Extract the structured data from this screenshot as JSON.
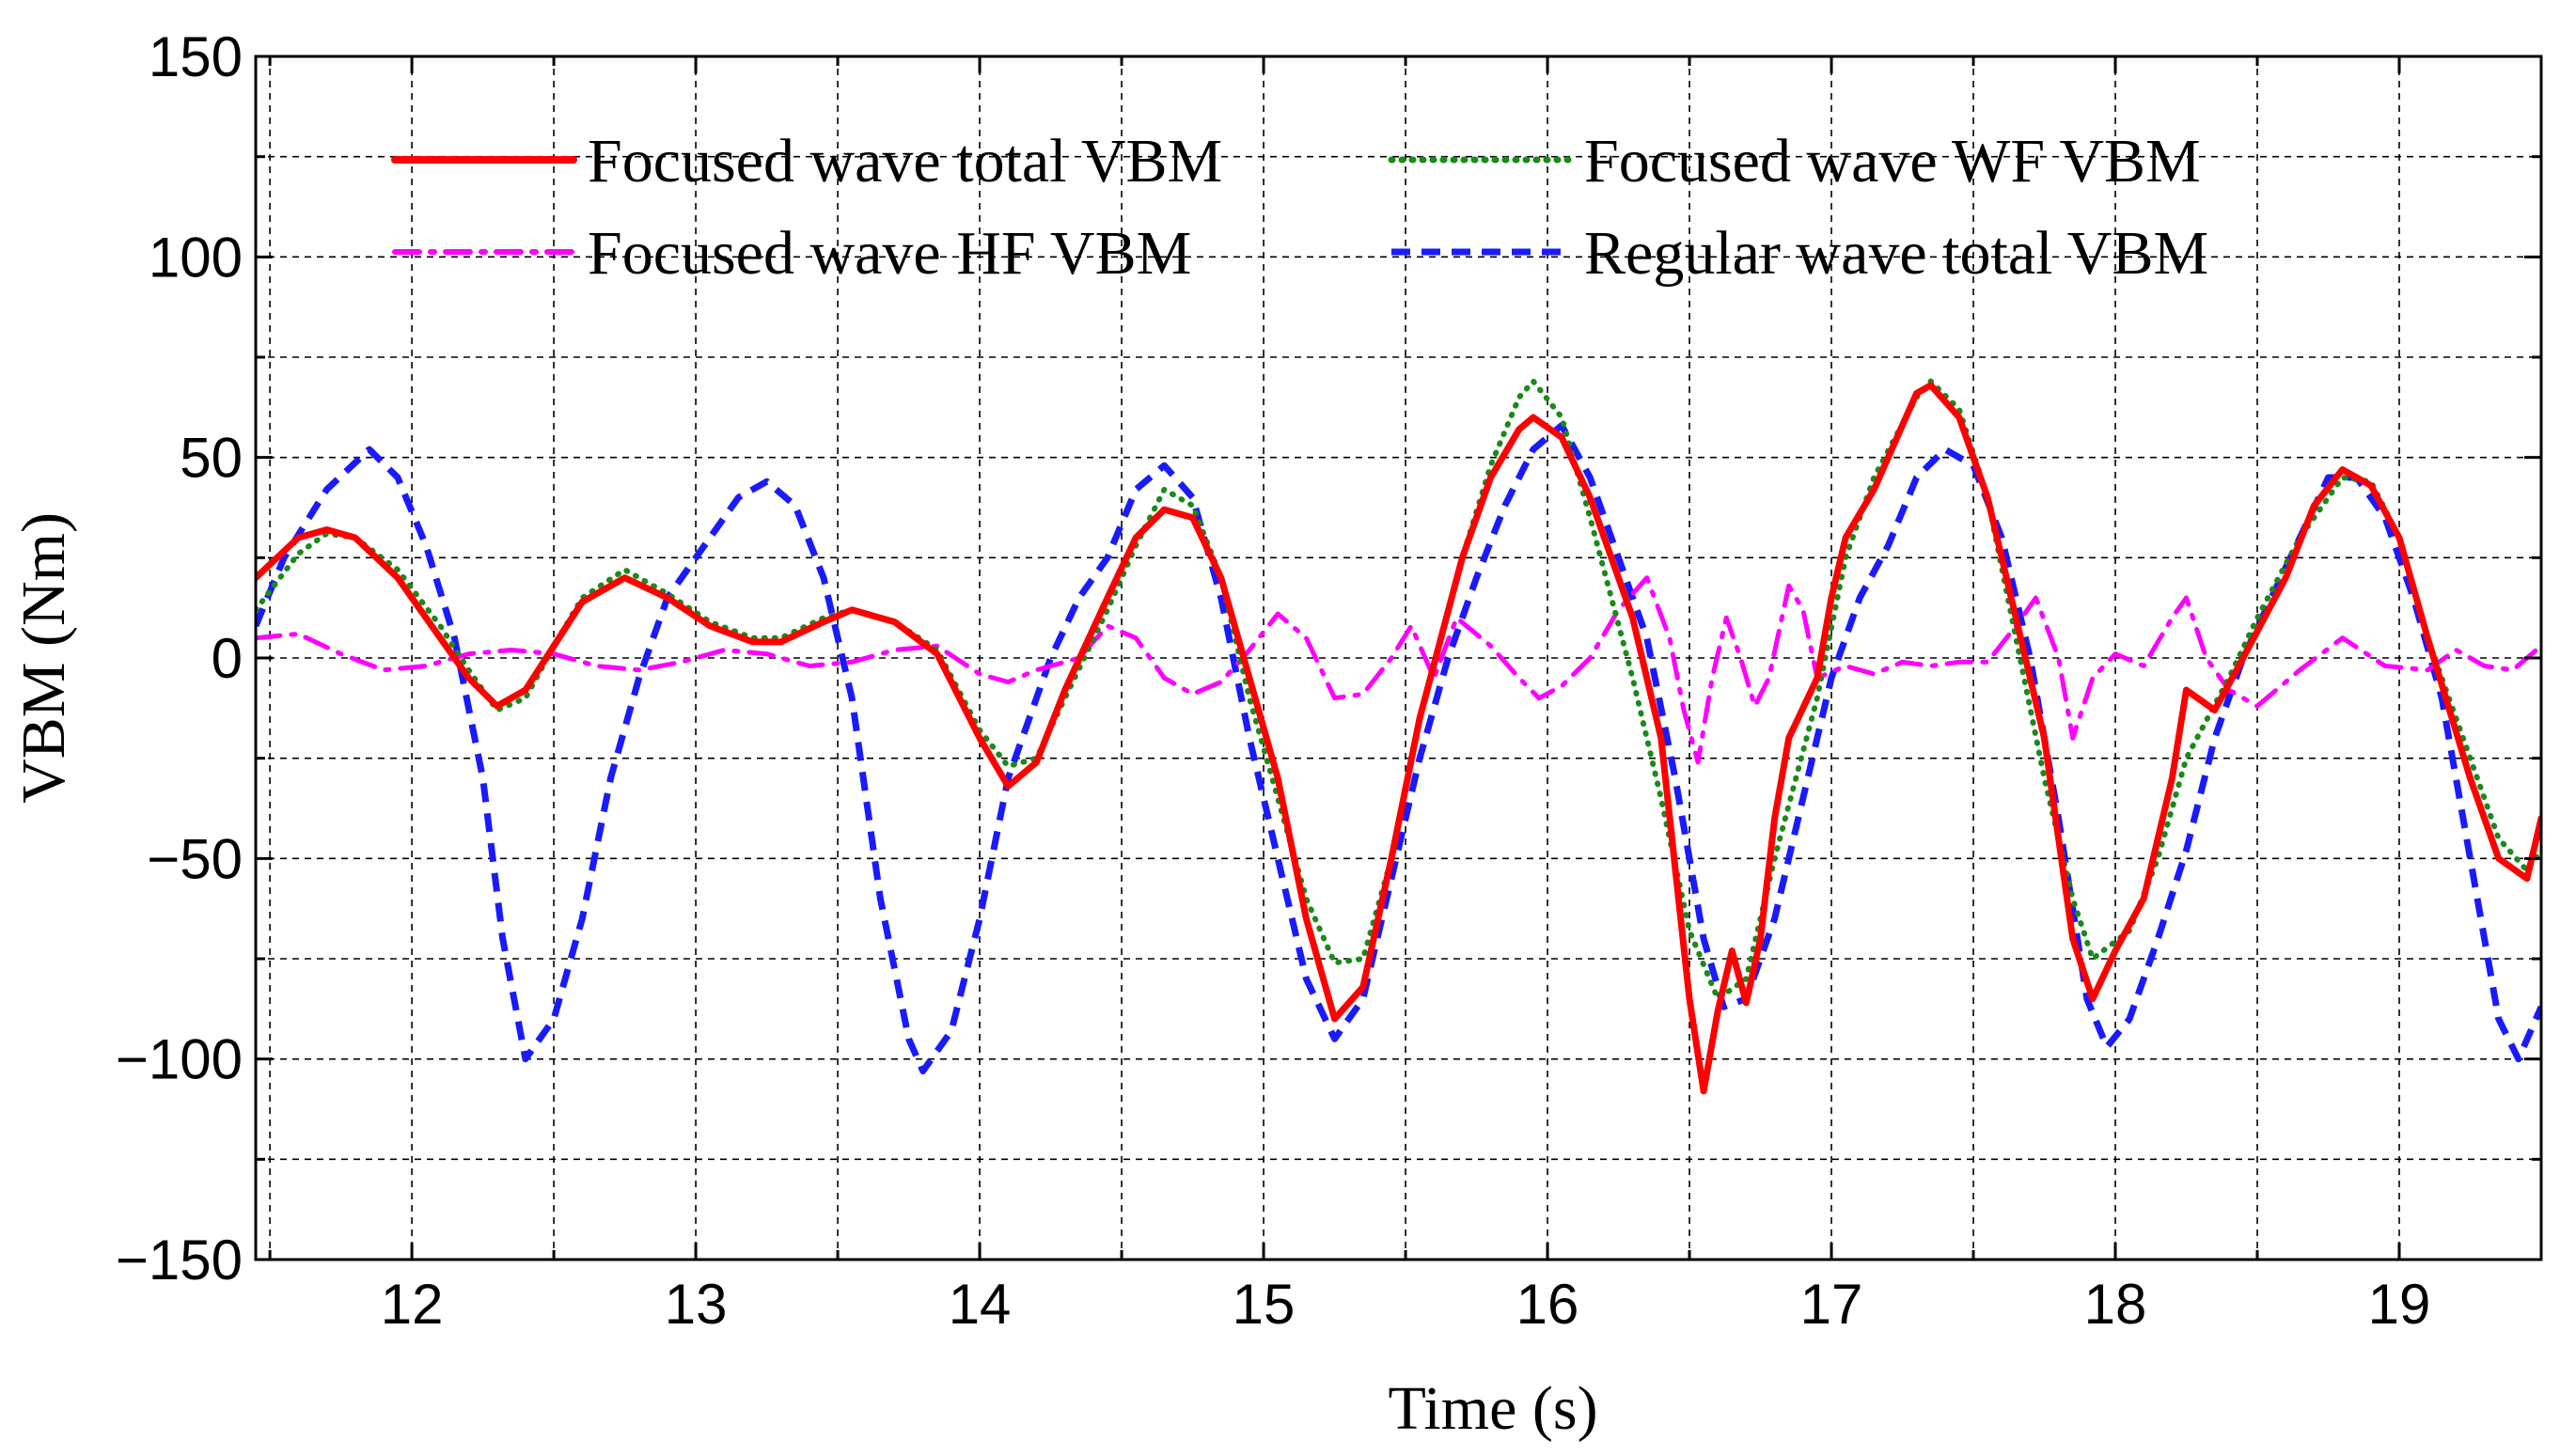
{
  "chart_data": {
    "type": "line",
    "title": "",
    "xlabel": "Time (s)",
    "ylabel": "VBM (Nm)",
    "xlim": [
      11.45,
      19.5
    ],
    "ylim": [
      -150,
      150
    ],
    "x_ticks": [
      12,
      13,
      14,
      15,
      16,
      17,
      18,
      19
    ],
    "x_tick_labels": [
      "12",
      "13",
      "14",
      "15",
      "16",
      "17",
      "18",
      "19"
    ],
    "y_ticks": [
      -150,
      -100,
      -50,
      0,
      50,
      100,
      150
    ],
    "y_tick_labels": [
      "−150",
      "−100",
      "−50",
      "0",
      "50",
      "100",
      "150"
    ],
    "grid": true,
    "legend_position": "top",
    "series": [
      {
        "name": "Focused wave total VBM",
        "color": "#ff0000",
        "style": "solid",
        "points": [
          [
            11.45,
            20
          ],
          [
            11.6,
            30
          ],
          [
            11.7,
            32
          ],
          [
            11.8,
            30
          ],
          [
            11.95,
            20
          ],
          [
            12.1,
            5
          ],
          [
            12.2,
            -5
          ],
          [
            12.3,
            -12
          ],
          [
            12.4,
            -8
          ],
          [
            12.5,
            3
          ],
          [
            12.6,
            14
          ],
          [
            12.75,
            20
          ],
          [
            12.9,
            15
          ],
          [
            13.05,
            8
          ],
          [
            13.2,
            4
          ],
          [
            13.3,
            4
          ],
          [
            13.45,
            9
          ],
          [
            13.55,
            12
          ],
          [
            13.7,
            9
          ],
          [
            13.85,
            1
          ],
          [
            14.0,
            -20
          ],
          [
            14.1,
            -32
          ],
          [
            14.2,
            -26
          ],
          [
            14.3,
            -8
          ],
          [
            14.45,
            15
          ],
          [
            14.55,
            30
          ],
          [
            14.65,
            37
          ],
          [
            14.75,
            35
          ],
          [
            14.85,
            20
          ],
          [
            14.95,
            -5
          ],
          [
            15.05,
            -30
          ],
          [
            15.15,
            -65
          ],
          [
            15.25,
            -90
          ],
          [
            15.35,
            -82
          ],
          [
            15.45,
            -50
          ],
          [
            15.55,
            -15
          ],
          [
            15.7,
            25
          ],
          [
            15.8,
            45
          ],
          [
            15.9,
            57
          ],
          [
            15.95,
            60
          ],
          [
            16.05,
            55
          ],
          [
            16.15,
            40
          ],
          [
            16.3,
            10
          ],
          [
            16.4,
            -20
          ],
          [
            16.5,
            -85
          ],
          [
            16.55,
            -108
          ],
          [
            16.6,
            -88
          ],
          [
            16.65,
            -73
          ],
          [
            16.7,
            -86
          ],
          [
            16.75,
            -70
          ],
          [
            16.8,
            -40
          ],
          [
            16.85,
            -20
          ],
          [
            16.95,
            -5
          ],
          [
            17.0,
            15
          ],
          [
            17.05,
            30
          ],
          [
            17.15,
            42
          ],
          [
            17.3,
            66
          ],
          [
            17.35,
            68
          ],
          [
            17.45,
            60
          ],
          [
            17.55,
            40
          ],
          [
            17.65,
            10
          ],
          [
            17.75,
            -20
          ],
          [
            17.85,
            -70
          ],
          [
            17.92,
            -85
          ],
          [
            18.0,
            -73
          ],
          [
            18.1,
            -60
          ],
          [
            18.2,
            -30
          ],
          [
            18.25,
            -8
          ],
          [
            18.35,
            -13
          ],
          [
            18.45,
            0
          ],
          [
            18.6,
            20
          ],
          [
            18.7,
            38
          ],
          [
            18.8,
            47
          ],
          [
            18.9,
            43
          ],
          [
            19.0,
            30
          ],
          [
            19.1,
            5
          ],
          [
            19.25,
            -30
          ],
          [
            19.35,
            -50
          ],
          [
            19.45,
            -55
          ],
          [
            19.5,
            -40
          ]
        ]
      },
      {
        "name": "Focused wave WF VBM",
        "color": "#1a8a1a",
        "style": "dotted",
        "points": [
          [
            11.45,
            12
          ],
          [
            11.6,
            26
          ],
          [
            11.7,
            31
          ],
          [
            11.8,
            30
          ],
          [
            11.95,
            22
          ],
          [
            12.1,
            8
          ],
          [
            12.2,
            -3
          ],
          [
            12.3,
            -13
          ],
          [
            12.4,
            -10
          ],
          [
            12.5,
            3
          ],
          [
            12.6,
            15
          ],
          [
            12.75,
            22
          ],
          [
            12.9,
            16
          ],
          [
            13.05,
            9
          ],
          [
            13.2,
            5
          ],
          [
            13.3,
            5
          ],
          [
            13.45,
            10
          ],
          [
            13.55,
            12
          ],
          [
            13.7,
            9
          ],
          [
            13.85,
            2
          ],
          [
            14.0,
            -18
          ],
          [
            14.1,
            -27
          ],
          [
            14.2,
            -25
          ],
          [
            14.3,
            -10
          ],
          [
            14.45,
            12
          ],
          [
            14.55,
            28
          ],
          [
            14.65,
            42
          ],
          [
            14.75,
            38
          ],
          [
            14.85,
            20
          ],
          [
            14.95,
            -10
          ],
          [
            15.05,
            -35
          ],
          [
            15.15,
            -60
          ],
          [
            15.25,
            -76
          ],
          [
            15.35,
            -75
          ],
          [
            15.45,
            -50
          ],
          [
            15.55,
            -15
          ],
          [
            15.7,
            25
          ],
          [
            15.8,
            48
          ],
          [
            15.9,
            65
          ],
          [
            15.95,
            69
          ],
          [
            16.05,
            60
          ],
          [
            16.15,
            35
          ],
          [
            16.3,
            -5
          ],
          [
            16.4,
            -35
          ],
          [
            16.5,
            -68
          ],
          [
            16.6,
            -85
          ],
          [
            16.7,
            -80
          ],
          [
            16.8,
            -50
          ],
          [
            16.95,
            -10
          ],
          [
            17.05,
            25
          ],
          [
            17.15,
            45
          ],
          [
            17.3,
            65
          ],
          [
            17.35,
            69
          ],
          [
            17.45,
            62
          ],
          [
            17.55,
            40
          ],
          [
            17.65,
            5
          ],
          [
            17.75,
            -30
          ],
          [
            17.85,
            -60
          ],
          [
            17.92,
            -75
          ],
          [
            18.05,
            -68
          ],
          [
            18.15,
            -50
          ],
          [
            18.25,
            -25
          ],
          [
            18.4,
            -5
          ],
          [
            18.5,
            10
          ],
          [
            18.65,
            30
          ],
          [
            18.8,
            45
          ],
          [
            18.9,
            44
          ],
          [
            19.0,
            30
          ],
          [
            19.1,
            5
          ],
          [
            19.25,
            -25
          ],
          [
            19.35,
            -45
          ],
          [
            19.45,
            -53
          ],
          [
            19.5,
            -48
          ]
        ]
      },
      {
        "name": "Focused wave HF VBM",
        "color": "#ff00ff",
        "style": "dashdot",
        "points": [
          [
            11.45,
            5
          ],
          [
            11.6,
            6
          ],
          [
            11.75,
            1
          ],
          [
            11.9,
            -3
          ],
          [
            12.05,
            -2
          ],
          [
            12.2,
            1
          ],
          [
            12.35,
            2
          ],
          [
            12.5,
            1
          ],
          [
            12.65,
            -2
          ],
          [
            12.8,
            -3
          ],
          [
            12.95,
            -1
          ],
          [
            13.1,
            2
          ],
          [
            13.25,
            1
          ],
          [
            13.4,
            -2
          ],
          [
            13.55,
            -1
          ],
          [
            13.7,
            2
          ],
          [
            13.85,
            3
          ],
          [
            14.0,
            -4
          ],
          [
            14.1,
            -6
          ],
          [
            14.2,
            -3
          ],
          [
            14.35,
            0
          ],
          [
            14.45,
            8
          ],
          [
            14.55,
            5
          ],
          [
            14.65,
            -5
          ],
          [
            14.75,
            -9
          ],
          [
            14.85,
            -6
          ],
          [
            14.95,
            2
          ],
          [
            15.05,
            11
          ],
          [
            15.15,
            5
          ],
          [
            15.25,
            -10
          ],
          [
            15.35,
            -9
          ],
          [
            15.45,
            0
          ],
          [
            15.52,
            8
          ],
          [
            15.6,
            -5
          ],
          [
            15.68,
            10
          ],
          [
            15.8,
            3
          ],
          [
            15.9,
            -5
          ],
          [
            15.97,
            -10
          ],
          [
            16.05,
            -7
          ],
          [
            16.15,
            0
          ],
          [
            16.25,
            12
          ],
          [
            16.35,
            20
          ],
          [
            16.43,
            5
          ],
          [
            16.48,
            -13
          ],
          [
            16.53,
            -26
          ],
          [
            16.58,
            -5
          ],
          [
            16.63,
            10
          ],
          [
            16.68,
            0
          ],
          [
            16.73,
            -12
          ],
          [
            16.78,
            -5
          ],
          [
            16.85,
            18
          ],
          [
            16.9,
            12
          ],
          [
            16.95,
            -5
          ],
          [
            17.05,
            -2
          ],
          [
            17.15,
            -4
          ],
          [
            17.25,
            -1
          ],
          [
            17.35,
            -2
          ],
          [
            17.45,
            -1
          ],
          [
            17.55,
            -1
          ],
          [
            17.65,
            8
          ],
          [
            17.72,
            15
          ],
          [
            17.8,
            0
          ],
          [
            17.85,
            -20
          ],
          [
            17.92,
            -5
          ],
          [
            18.0,
            1
          ],
          [
            18.1,
            -2
          ],
          [
            18.2,
            10
          ],
          [
            18.25,
            15
          ],
          [
            18.32,
            0
          ],
          [
            18.4,
            -8
          ],
          [
            18.5,
            -12
          ],
          [
            18.55,
            -9
          ],
          [
            18.65,
            -3
          ],
          [
            18.8,
            5
          ],
          [
            18.95,
            -2
          ],
          [
            19.1,
            -3
          ],
          [
            19.2,
            2
          ],
          [
            19.3,
            -2
          ],
          [
            19.4,
            -3
          ],
          [
            19.5,
            3
          ]
        ]
      },
      {
        "name": "Regular wave total VBM",
        "color": "#1a1aff",
        "style": "dashed",
        "points": [
          [
            11.45,
            8
          ],
          [
            11.55,
            25
          ],
          [
            11.7,
            42
          ],
          [
            11.85,
            52
          ],
          [
            11.95,
            45
          ],
          [
            12.05,
            28
          ],
          [
            12.15,
            5
          ],
          [
            12.25,
            -30
          ],
          [
            12.32,
            -70
          ],
          [
            12.4,
            -100
          ],
          [
            12.5,
            -90
          ],
          [
            12.6,
            -65
          ],
          [
            12.7,
            -30
          ],
          [
            12.8,
            -5
          ],
          [
            12.9,
            15
          ],
          [
            13.05,
            30
          ],
          [
            13.15,
            40
          ],
          [
            13.25,
            44
          ],
          [
            13.35,
            38
          ],
          [
            13.45,
            20
          ],
          [
            13.55,
            -10
          ],
          [
            13.65,
            -60
          ],
          [
            13.75,
            -95
          ],
          [
            13.8,
            -103
          ],
          [
            13.9,
            -93
          ],
          [
            14.0,
            -65
          ],
          [
            14.1,
            -30
          ],
          [
            14.25,
            0
          ],
          [
            14.35,
            15
          ],
          [
            14.45,
            25
          ],
          [
            14.55,
            42
          ],
          [
            14.65,
            48
          ],
          [
            14.75,
            40
          ],
          [
            14.85,
            15
          ],
          [
            14.95,
            -20
          ],
          [
            15.05,
            -50
          ],
          [
            15.15,
            -80
          ],
          [
            15.25,
            -95
          ],
          [
            15.35,
            -85
          ],
          [
            15.45,
            -55
          ],
          [
            15.55,
            -25
          ],
          [
            15.65,
            0
          ],
          [
            15.75,
            20
          ],
          [
            15.85,
            38
          ],
          [
            15.95,
            52
          ],
          [
            16.05,
            58
          ],
          [
            16.15,
            45
          ],
          [
            16.25,
            25
          ],
          [
            16.35,
            5
          ],
          [
            16.45,
            -30
          ],
          [
            16.55,
            -70
          ],
          [
            16.62,
            -87
          ],
          [
            16.7,
            -85
          ],
          [
            16.8,
            -65
          ],
          [
            16.9,
            -35
          ],
          [
            17.0,
            -5
          ],
          [
            17.1,
            15
          ],
          [
            17.2,
            28
          ],
          [
            17.3,
            45
          ],
          [
            17.4,
            52
          ],
          [
            17.5,
            48
          ],
          [
            17.6,
            30
          ],
          [
            17.7,
            0
          ],
          [
            17.8,
            -40
          ],
          [
            17.9,
            -85
          ],
          [
            17.97,
            -97
          ],
          [
            18.05,
            -90
          ],
          [
            18.15,
            -70
          ],
          [
            18.25,
            -48
          ],
          [
            18.35,
            -20
          ],
          [
            18.45,
            0
          ],
          [
            18.55,
            15
          ],
          [
            18.65,
            30
          ],
          [
            18.75,
            45
          ],
          [
            18.85,
            45
          ],
          [
            18.95,
            35
          ],
          [
            19.05,
            15
          ],
          [
            19.15,
            -10
          ],
          [
            19.25,
            -50
          ],
          [
            19.35,
            -90
          ],
          [
            19.42,
            -100
          ],
          [
            19.5,
            -87
          ]
        ]
      }
    ]
  }
}
